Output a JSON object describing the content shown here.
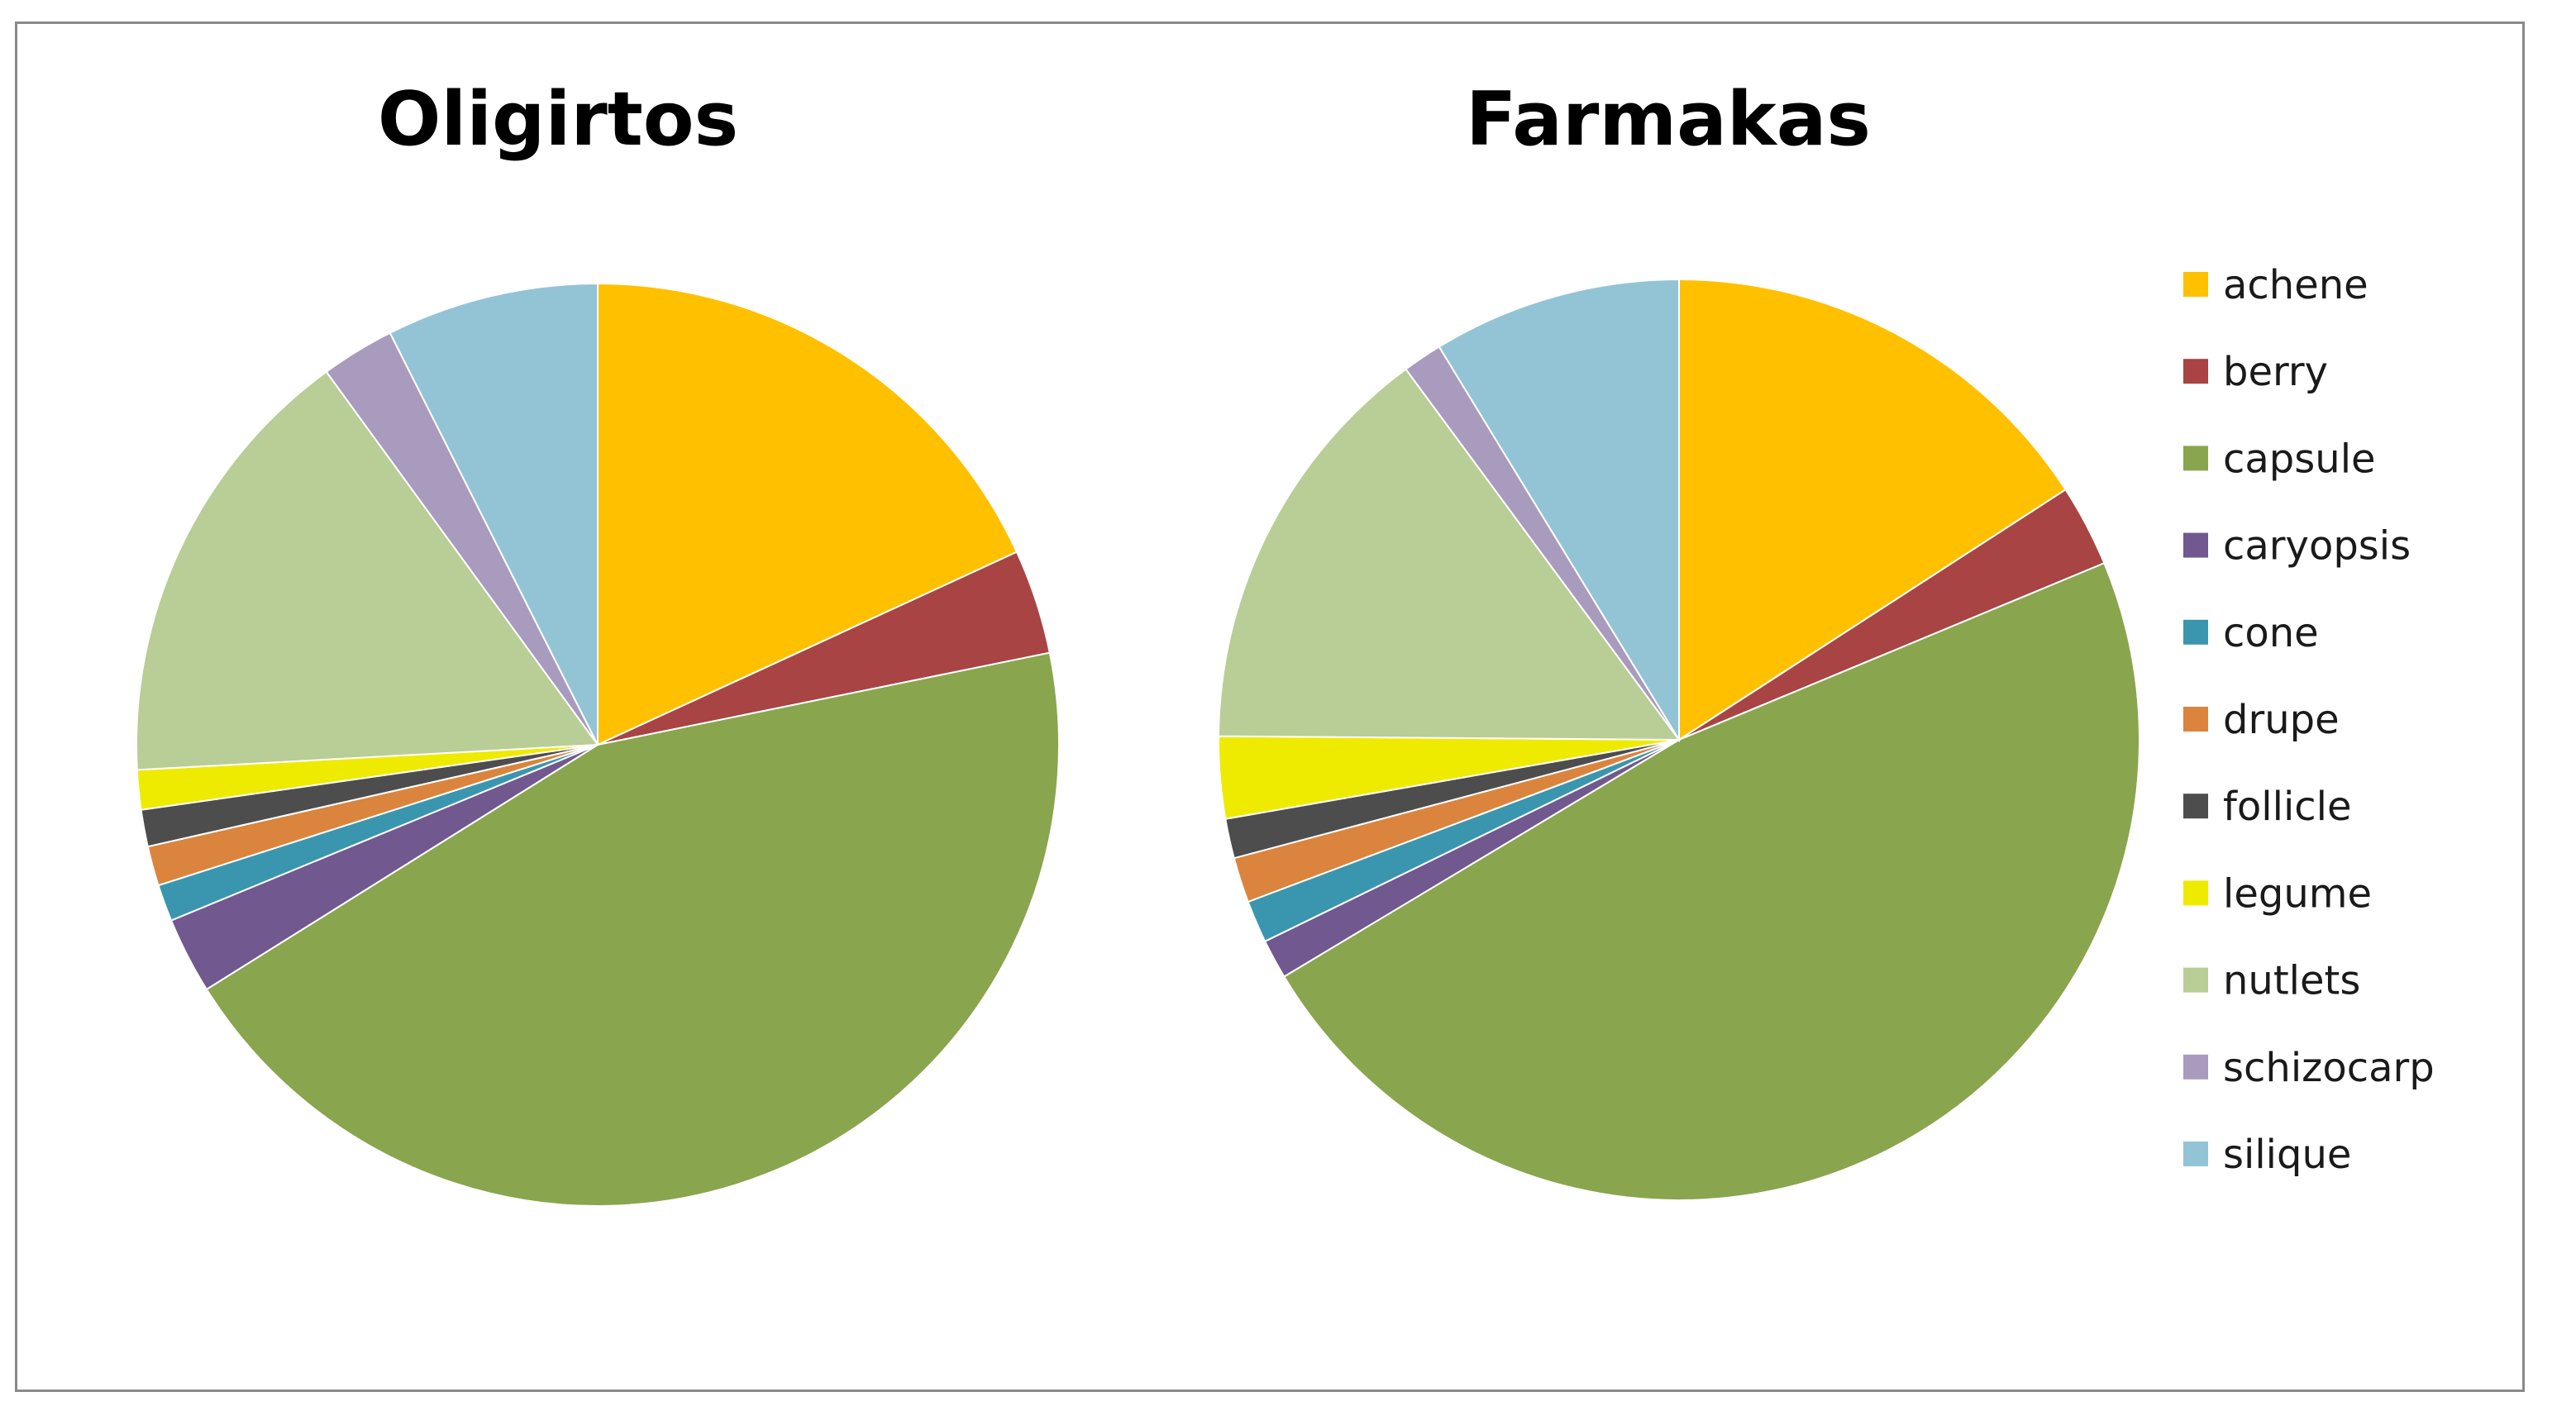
{
  "chart_data": [
    {
      "type": "pie",
      "title": "Oligirtos",
      "categories": [
        "achene",
        "berry",
        "capsule",
        "caryopsis",
        "cone",
        "drupe",
        "follicle",
        "legume",
        "nutlets",
        "schizocarp",
        "silique"
      ],
      "values": [
        18.3,
        3.7,
        44.7,
        2.7,
        1.3,
        1.4,
        1.3,
        1.4,
        16.0,
        2.6,
        7.5
      ],
      "legend": "right"
    },
    {
      "type": "pie",
      "title": "Farmakas",
      "categories": [
        "achene",
        "berry",
        "capsule",
        "caryopsis",
        "cone",
        "drupe",
        "follicle",
        "legume",
        "nutlets",
        "schizocarp",
        "silique"
      ],
      "values": [
        16.0,
        2.9,
        48.1,
        1.4,
        1.5,
        1.6,
        1.4,
        2.9,
        14.9,
        1.4,
        8.8
      ],
      "legend": "right"
    }
  ],
  "legend": {
    "items": [
      {
        "label": "achene",
        "color": "#FFC000"
      },
      {
        "label": "berry",
        "color": "#A84444"
      },
      {
        "label": "capsule",
        "color": "#89A54E"
      },
      {
        "label": "caryopsis",
        "color": "#71588F"
      },
      {
        "label": "cone",
        "color": "#3A96AE"
      },
      {
        "label": "drupe",
        "color": "#DB843D"
      },
      {
        "label": "follicle",
        "color": "#4D4D4D"
      },
      {
        "label": "legume",
        "color": "#EEEA00"
      },
      {
        "label": "nutlets",
        "color": "#B9CD96"
      },
      {
        "label": "schizocarp",
        "color": "#A99BBD"
      },
      {
        "label": "silique",
        "color": "#93C4D6"
      }
    ]
  }
}
